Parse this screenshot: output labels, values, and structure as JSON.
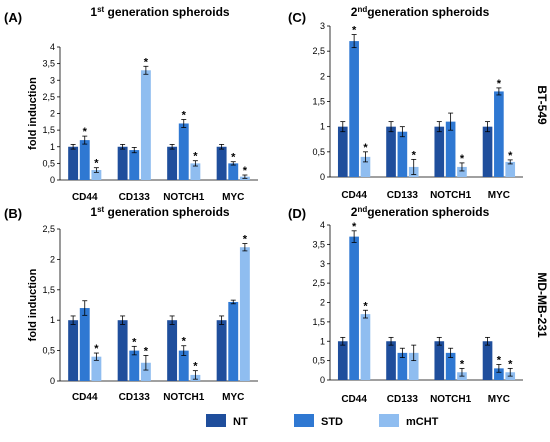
{
  "figure": {
    "side_labels": [
      "BT-549",
      "MD-MB-231"
    ],
    "legend": [
      {
        "name": "NT",
        "color": "#1f4e9c"
      },
      {
        "name": "STD",
        "color": "#2f78d2"
      },
      {
        "name": "mCHT",
        "color": "#8fbdf0"
      }
    ]
  },
  "chart_data": [
    {
      "type": "bar",
      "panel": "(A)",
      "title": "1st generation spheroids",
      "title_prefix": "1",
      "title_sup": "st",
      "title_rest": " generation spheroids",
      "ylabel": "fold induction",
      "ylim": [
        0,
        4
      ],
      "yticks": [
        0,
        0.5,
        1,
        1.5,
        2,
        2.5,
        3,
        3.5,
        4
      ],
      "yticklabels": [
        "0",
        "0,5",
        "1",
        "1,5",
        "2",
        "2,5",
        "3",
        "3,5",
        "4"
      ],
      "categories": [
        "CD44",
        "CD133",
        "NOTCH1",
        "MYC"
      ],
      "series": [
        {
          "name": "NT",
          "values": [
            1.0,
            1.0,
            1.0,
            1.0
          ],
          "errors": [
            0.07,
            0.07,
            0.07,
            0.07
          ],
          "stars": [
            false,
            false,
            false,
            false
          ]
        },
        {
          "name": "STD",
          "values": [
            1.2,
            0.9,
            1.7,
            0.5
          ],
          "errors": [
            0.12,
            0.08,
            0.12,
            0.05
          ],
          "stars": [
            true,
            false,
            true,
            true
          ]
        },
        {
          "name": "mCHT",
          "values": [
            0.3,
            3.3,
            0.5,
            0.1
          ],
          "errors": [
            0.07,
            0.12,
            0.08,
            0.05
          ],
          "stars": [
            true,
            true,
            true,
            true
          ]
        }
      ]
    },
    {
      "type": "bar",
      "panel": "(C)",
      "title": "2ndgeneration spheroids",
      "title_prefix": "2",
      "title_sup": "nd",
      "title_rest": "generation spheroids",
      "ylabel": "",
      "ylim": [
        0,
        3
      ],
      "yticks": [
        0,
        0.5,
        1,
        1.5,
        2,
        2.5,
        3
      ],
      "yticklabels": [
        "0",
        "0,5",
        "1",
        "1,5",
        "2",
        "2,5",
        "3"
      ],
      "categories": [
        "CD44",
        "CD133",
        "NOTCH1",
        "MYC"
      ],
      "series": [
        {
          "name": "NT",
          "values": [
            1.0,
            1.0,
            1.0,
            1.0
          ],
          "errors": [
            0.1,
            0.1,
            0.1,
            0.1
          ],
          "stars": [
            false,
            false,
            false,
            false
          ]
        },
        {
          "name": "STD",
          "values": [
            2.7,
            0.9,
            1.1,
            1.7
          ],
          "errors": [
            0.13,
            0.1,
            0.17,
            0.07
          ],
          "stars": [
            true,
            false,
            false,
            true
          ]
        },
        {
          "name": "mCHT",
          "values": [
            0.4,
            0.2,
            0.2,
            0.3
          ],
          "errors": [
            0.1,
            0.15,
            0.08,
            0.04
          ],
          "stars": [
            true,
            true,
            true,
            true
          ]
        }
      ]
    },
    {
      "type": "bar",
      "panel": "(B)",
      "title": "1st generation spheroids",
      "title_prefix": "1",
      "title_sup": "st",
      "title_rest": " generation spheroids",
      "ylabel": "fold induction",
      "ylim": [
        0,
        2.5
      ],
      "yticks": [
        0,
        0.5,
        1,
        1.5,
        2,
        2.5
      ],
      "yticklabels": [
        "0",
        "0,5",
        "1",
        "1,5",
        "2",
        "2,5"
      ],
      "categories": [
        "CD44",
        "CD133",
        "NOTCH1",
        "MYC"
      ],
      "series": [
        {
          "name": "NT",
          "values": [
            1.0,
            1.0,
            1.0,
            1.0
          ],
          "errors": [
            0.07,
            0.07,
            0.07,
            0.07
          ],
          "stars": [
            false,
            false,
            false,
            false
          ]
        },
        {
          "name": "STD",
          "values": [
            1.2,
            0.5,
            0.5,
            1.3
          ],
          "errors": [
            0.12,
            0.07,
            0.08,
            0.03
          ],
          "stars": [
            false,
            true,
            true,
            false
          ]
        },
        {
          "name": "mCHT",
          "values": [
            0.4,
            0.3,
            0.1,
            2.2
          ],
          "errors": [
            0.06,
            0.12,
            0.07,
            0.06
          ],
          "stars": [
            true,
            true,
            true,
            true
          ]
        }
      ]
    },
    {
      "type": "bar",
      "panel": "(D)",
      "title": "2ndgeneration spheroids",
      "title_prefix": "2",
      "title_sup": "nd",
      "title_rest": "generation spheroids",
      "ylabel": "",
      "ylim": [
        0,
        4
      ],
      "yticks": [
        0,
        0.5,
        1,
        1.5,
        2,
        2.5,
        3,
        3.5,
        4
      ],
      "yticklabels": [
        "0",
        "0,5",
        "1",
        "1,5",
        "2",
        "2,5",
        "3",
        "3,5",
        "4"
      ],
      "categories": [
        "CD44",
        "CD133",
        "NOTCH1",
        "MYC"
      ],
      "series": [
        {
          "name": "NT",
          "values": [
            1.0,
            1.0,
            1.0,
            1.0
          ],
          "errors": [
            0.1,
            0.1,
            0.1,
            0.1
          ],
          "stars": [
            false,
            false,
            false,
            false
          ]
        },
        {
          "name": "STD",
          "values": [
            3.7,
            0.7,
            0.7,
            0.3
          ],
          "errors": [
            0.15,
            0.12,
            0.12,
            0.1
          ],
          "stars": [
            true,
            false,
            false,
            true
          ]
        },
        {
          "name": "mCHT",
          "values": [
            1.7,
            0.7,
            0.2,
            0.2
          ],
          "errors": [
            0.1,
            0.2,
            0.1,
            0.1
          ],
          "stars": [
            true,
            false,
            true,
            true
          ]
        }
      ]
    }
  ]
}
